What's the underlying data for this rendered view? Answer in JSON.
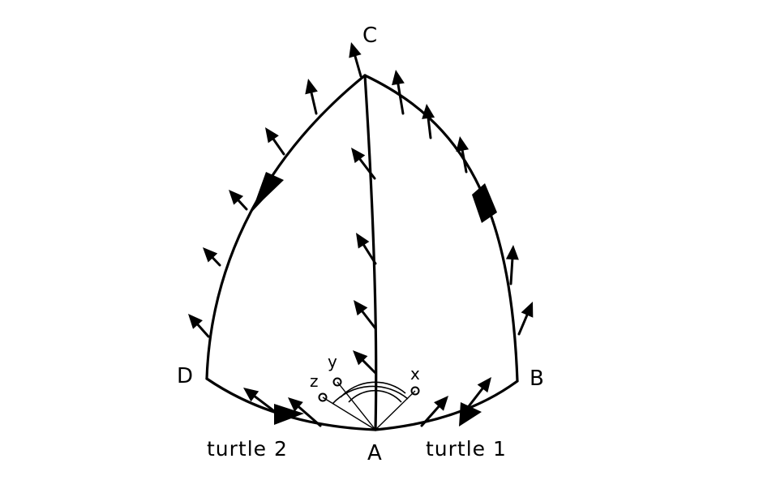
{
  "vertices": {
    "A": "A",
    "B": "B",
    "C": "C",
    "D": "D"
  },
  "turtles": {
    "turtle_1": "turtle 1",
    "turtle_2": "turtle 2"
  },
  "axes": {
    "x": "x",
    "y": "y",
    "z": "z"
  },
  "colors": {
    "ink": "#000000",
    "background": "#ffffff"
  }
}
